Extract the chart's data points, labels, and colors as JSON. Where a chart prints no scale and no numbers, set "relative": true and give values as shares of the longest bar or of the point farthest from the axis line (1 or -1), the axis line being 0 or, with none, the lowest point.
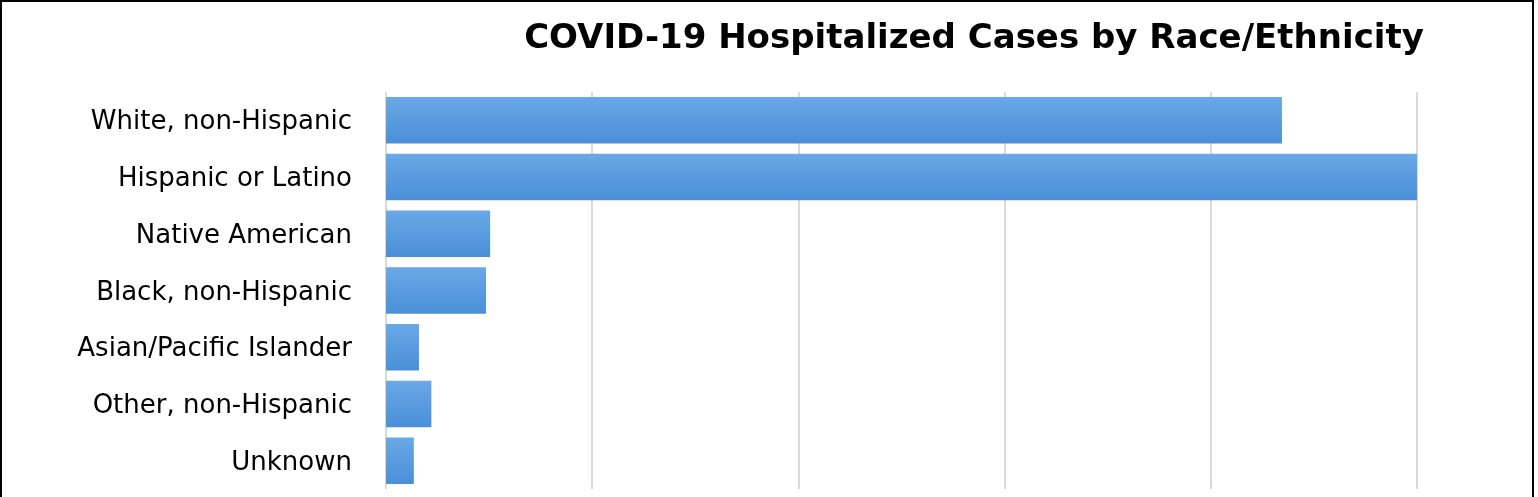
{
  "chart_data": {
    "type": "bar",
    "orientation": "horizontal",
    "relative": true,
    "title": "COVID-19 Hospitalized Cases by Race/Ethnicity",
    "categories": [
      "White, non-Hispanic",
      "Hispanic or Latino",
      "Native American",
      "Black, non-Hispanic",
      "Asian/Pacific Islander",
      "Other, non-Hispanic",
      "Unknown"
    ],
    "values": [
      0.869,
      1,
      0.101,
      0.097,
      0.032,
      0.044,
      0.027
    ],
    "color": "#4a8fd8",
    "grid": "x"
  }
}
